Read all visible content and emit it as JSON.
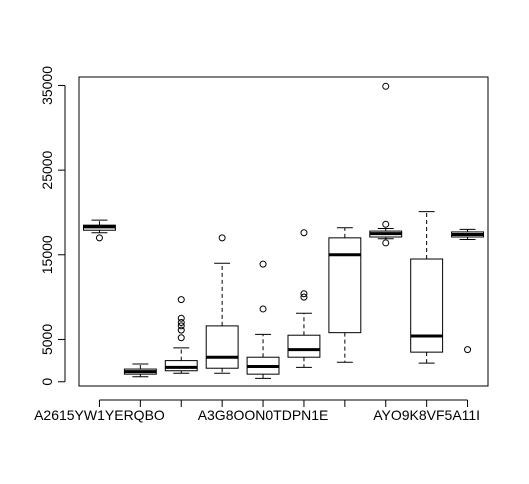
{
  "chart_data": {
    "type": "boxplot",
    "title": "",
    "xlabel": "",
    "ylabel": "",
    "ylim": [
      -500,
      36000
    ],
    "y_ticks": [
      0,
      5000,
      15000,
      25000,
      35000
    ],
    "x_tick_labels": [
      {
        "position": 1,
        "label": "A2615YW1YERQBO"
      },
      {
        "position": 5,
        "label": "A3G8OON0TDPN1E"
      },
      {
        "position": 9,
        "label": "AYO9K8VF5A11I"
      }
    ],
    "boxes": [
      {
        "position": 1,
        "whisker_low": 17600,
        "q1": 17900,
        "median": 18300,
        "q3": 18500,
        "whisker_high": 19100,
        "outliers": [
          17000
        ]
      },
      {
        "position": 2,
        "whisker_low": 600,
        "q1": 900,
        "median": 1200,
        "q3": 1500,
        "whisker_high": 2100,
        "outliers": []
      },
      {
        "position": 3,
        "whisker_low": 1000,
        "q1": 1300,
        "median": 1700,
        "q3": 2500,
        "whisker_high": 4000,
        "outliers": [
          5200,
          6100,
          6600,
          7000,
          7500,
          9700
        ]
      },
      {
        "position": 4,
        "whisker_low": 1000,
        "q1": 1600,
        "median": 2900,
        "q3": 6600,
        "whisker_high": 14000,
        "outliers": [
          17000
        ]
      },
      {
        "position": 5,
        "whisker_low": 400,
        "q1": 900,
        "median": 1800,
        "q3": 2900,
        "whisker_high": 5600,
        "outliers": [
          8600,
          13900
        ]
      },
      {
        "position": 6,
        "whisker_low": 1700,
        "q1": 2900,
        "median": 3800,
        "q3": 5500,
        "whisker_high": 8100,
        "outliers": [
          10000,
          10400,
          17600
        ]
      },
      {
        "position": 7,
        "whisker_low": 2300,
        "q1": 5800,
        "median": 15000,
        "q3": 17000,
        "whisker_high": 18200,
        "outliers": []
      },
      {
        "position": 8,
        "whisker_low": 16900,
        "q1": 17100,
        "median": 17500,
        "q3": 17800,
        "whisker_high": 18100,
        "outliers": [
          16400,
          18600,
          34900
        ]
      },
      {
        "position": 9,
        "whisker_low": 2200,
        "q1": 3500,
        "median": 5400,
        "q3": 14500,
        "whisker_high": 20100,
        "outliers": []
      },
      {
        "position": 10,
        "whisker_low": 16800,
        "q1": 17100,
        "median": 17400,
        "q3": 17700,
        "whisker_high": 18000,
        "outliers": [
          3800
        ]
      }
    ]
  }
}
